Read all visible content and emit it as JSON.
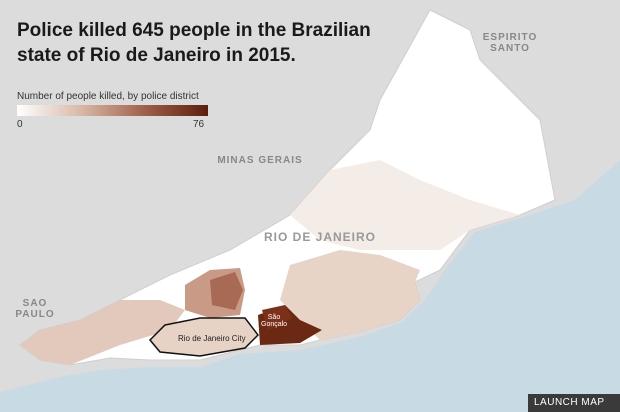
{
  "title": "Police killed 645 people in the Brazilian state of Rio de Janeiro in 2015.",
  "legend": {
    "label": "Number of people killed, by police district",
    "min": 0,
    "max": 76
  },
  "labels": {
    "espirito_santo": "ESPIRITO SANTO",
    "minas_gerais": "MINAS GERAIS",
    "rio_de_janeiro": "RIO DE JANEIRO",
    "sao_paulo": "SAO PAULO",
    "rio_city": "Rio de Janeiro City",
    "sao_goncalo": "São Gonçalo"
  },
  "button": "LAUNCH MAP"
}
